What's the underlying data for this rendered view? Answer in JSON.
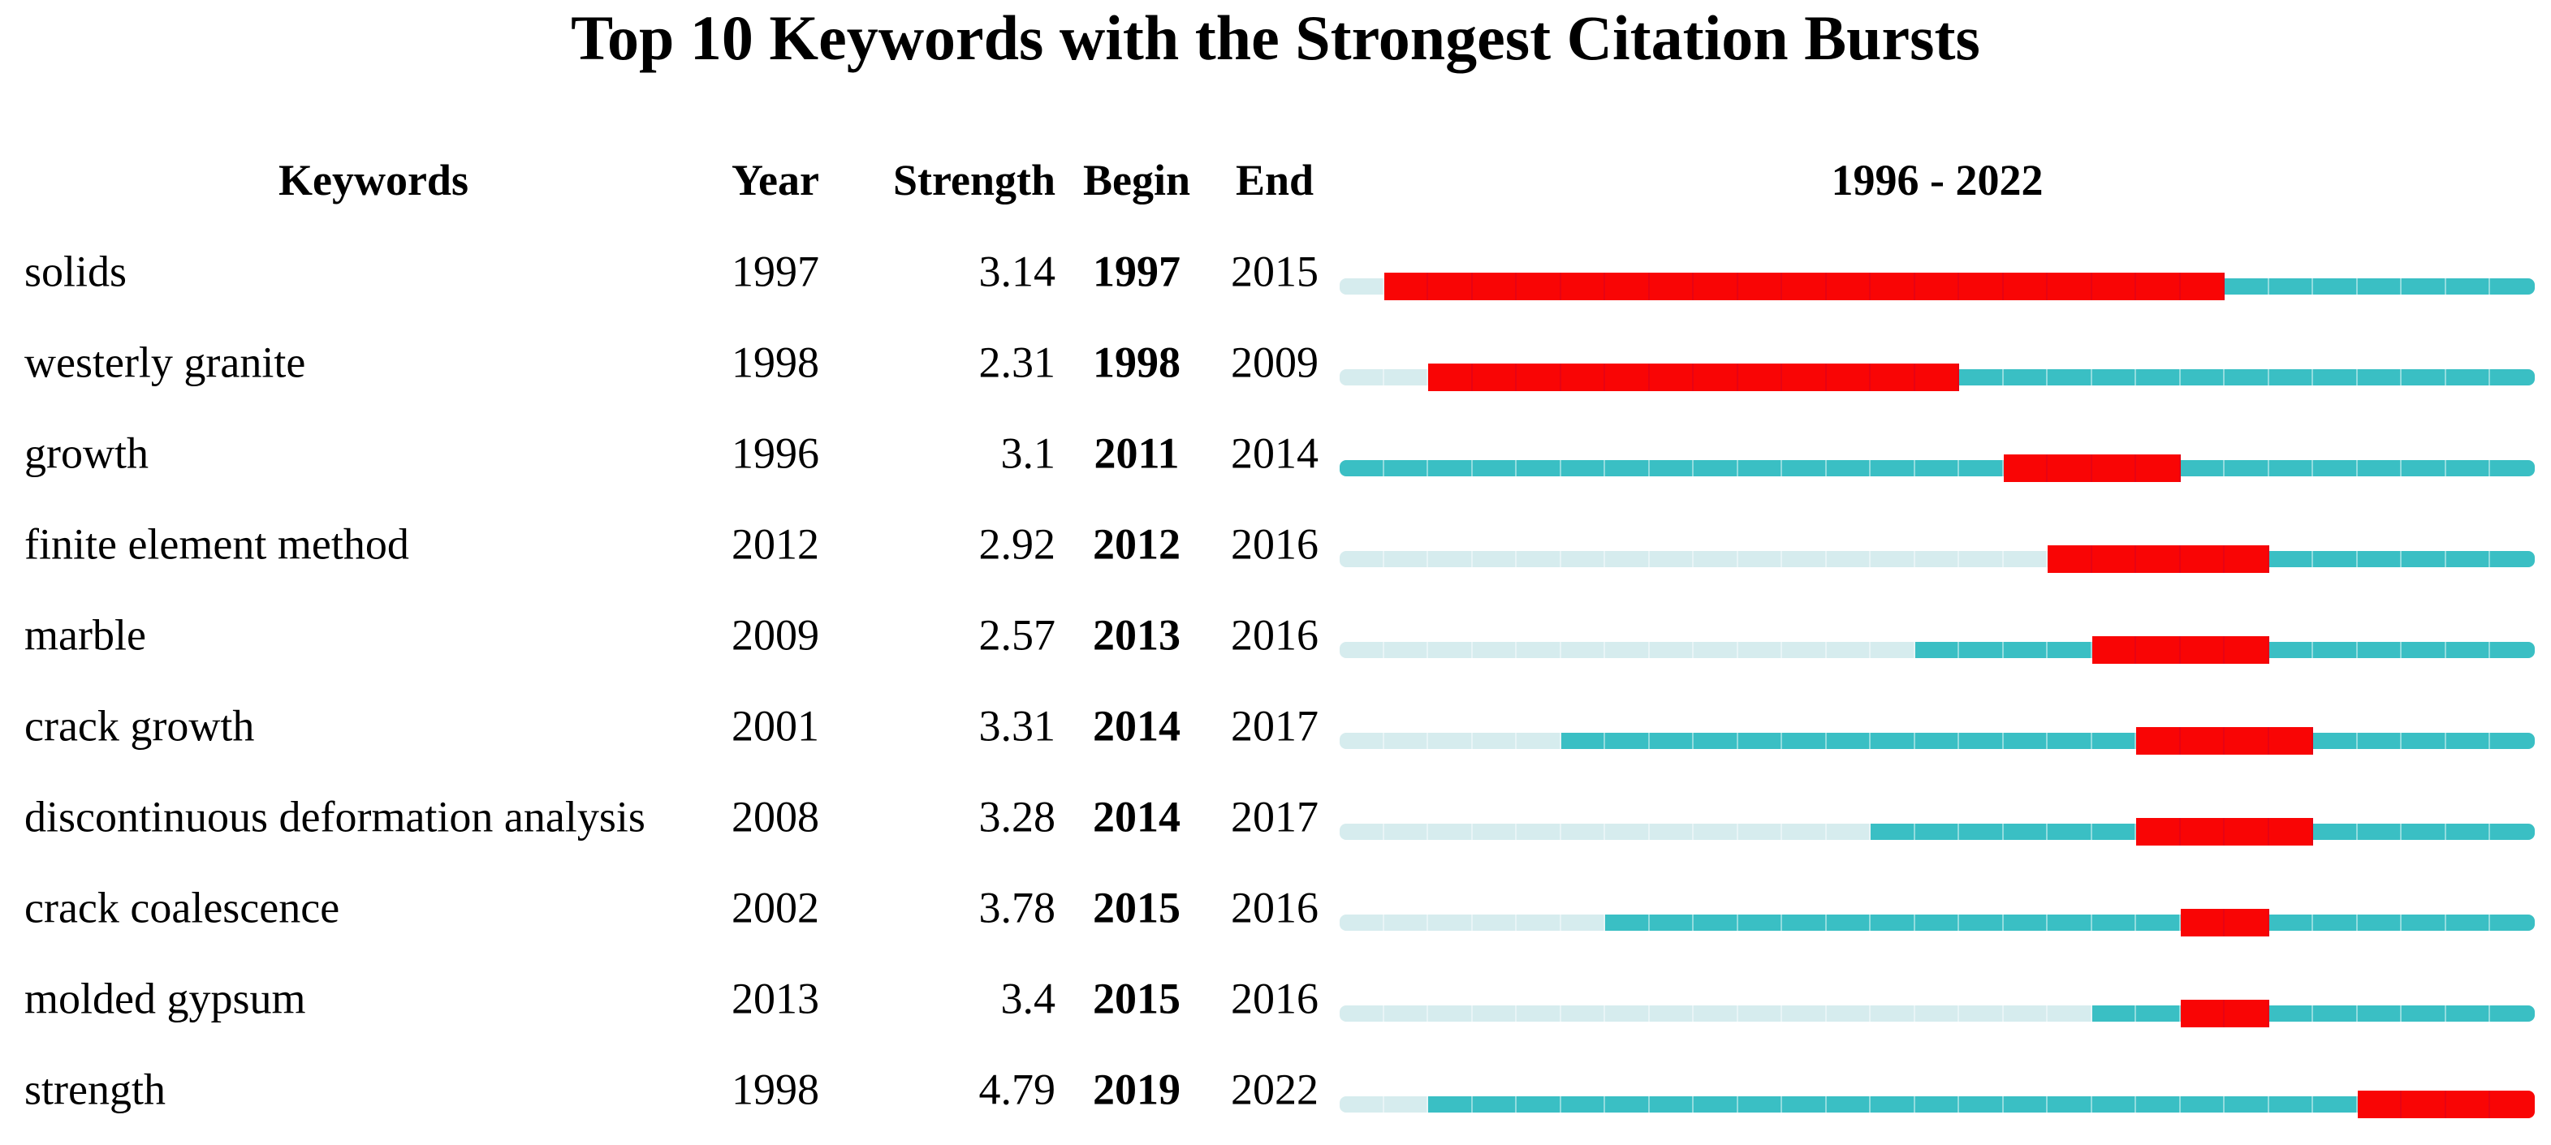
{
  "page": {
    "background": "#FFFFFF",
    "text_color": "#000000"
  },
  "chart_data": {
    "type": "table",
    "title": "Top 10 Keywords with the Strongest Citation Bursts",
    "columns": [
      "Keywords",
      "Year",
      "Strength",
      "Begin",
      "End"
    ],
    "timeline_header": "1996 - 2022",
    "timeline_start": 1996,
    "timeline_end": 2022,
    "legend": "none",
    "grid": "off",
    "colors": {
      "burst": "#F90505",
      "active": "#3ABFC4",
      "inactive": "#D6ECEE"
    },
    "rows": [
      {
        "keyword": "solids",
        "year": 1997,
        "strength": "3.14",
        "begin": 1997,
        "end": 2015
      },
      {
        "keyword": "westerly granite",
        "year": 1998,
        "strength": "2.31",
        "begin": 1998,
        "end": 2009
      },
      {
        "keyword": "growth",
        "year": 1996,
        "strength": "3.1",
        "begin": 2011,
        "end": 2014
      },
      {
        "keyword": "finite element method",
        "year": 2012,
        "strength": "2.92",
        "begin": 2012,
        "end": 2016
      },
      {
        "keyword": "marble",
        "year": 2009,
        "strength": "2.57",
        "begin": 2013,
        "end": 2016
      },
      {
        "keyword": "crack growth",
        "year": 2001,
        "strength": "3.31",
        "begin": 2014,
        "end": 2017
      },
      {
        "keyword": "discontinuous deformation analysis",
        "year": 2008,
        "strength": "3.28",
        "begin": 2014,
        "end": 2017
      },
      {
        "keyword": "crack coalescence",
        "year": 2002,
        "strength": "3.78",
        "begin": 2015,
        "end": 2016
      },
      {
        "keyword": "molded gypsum",
        "year": 2013,
        "strength": "3.4",
        "begin": 2015,
        "end": 2016
      },
      {
        "keyword": "strength",
        "year": 1998,
        "strength": "4.79",
        "begin": 2019,
        "end": 2022
      }
    ]
  }
}
